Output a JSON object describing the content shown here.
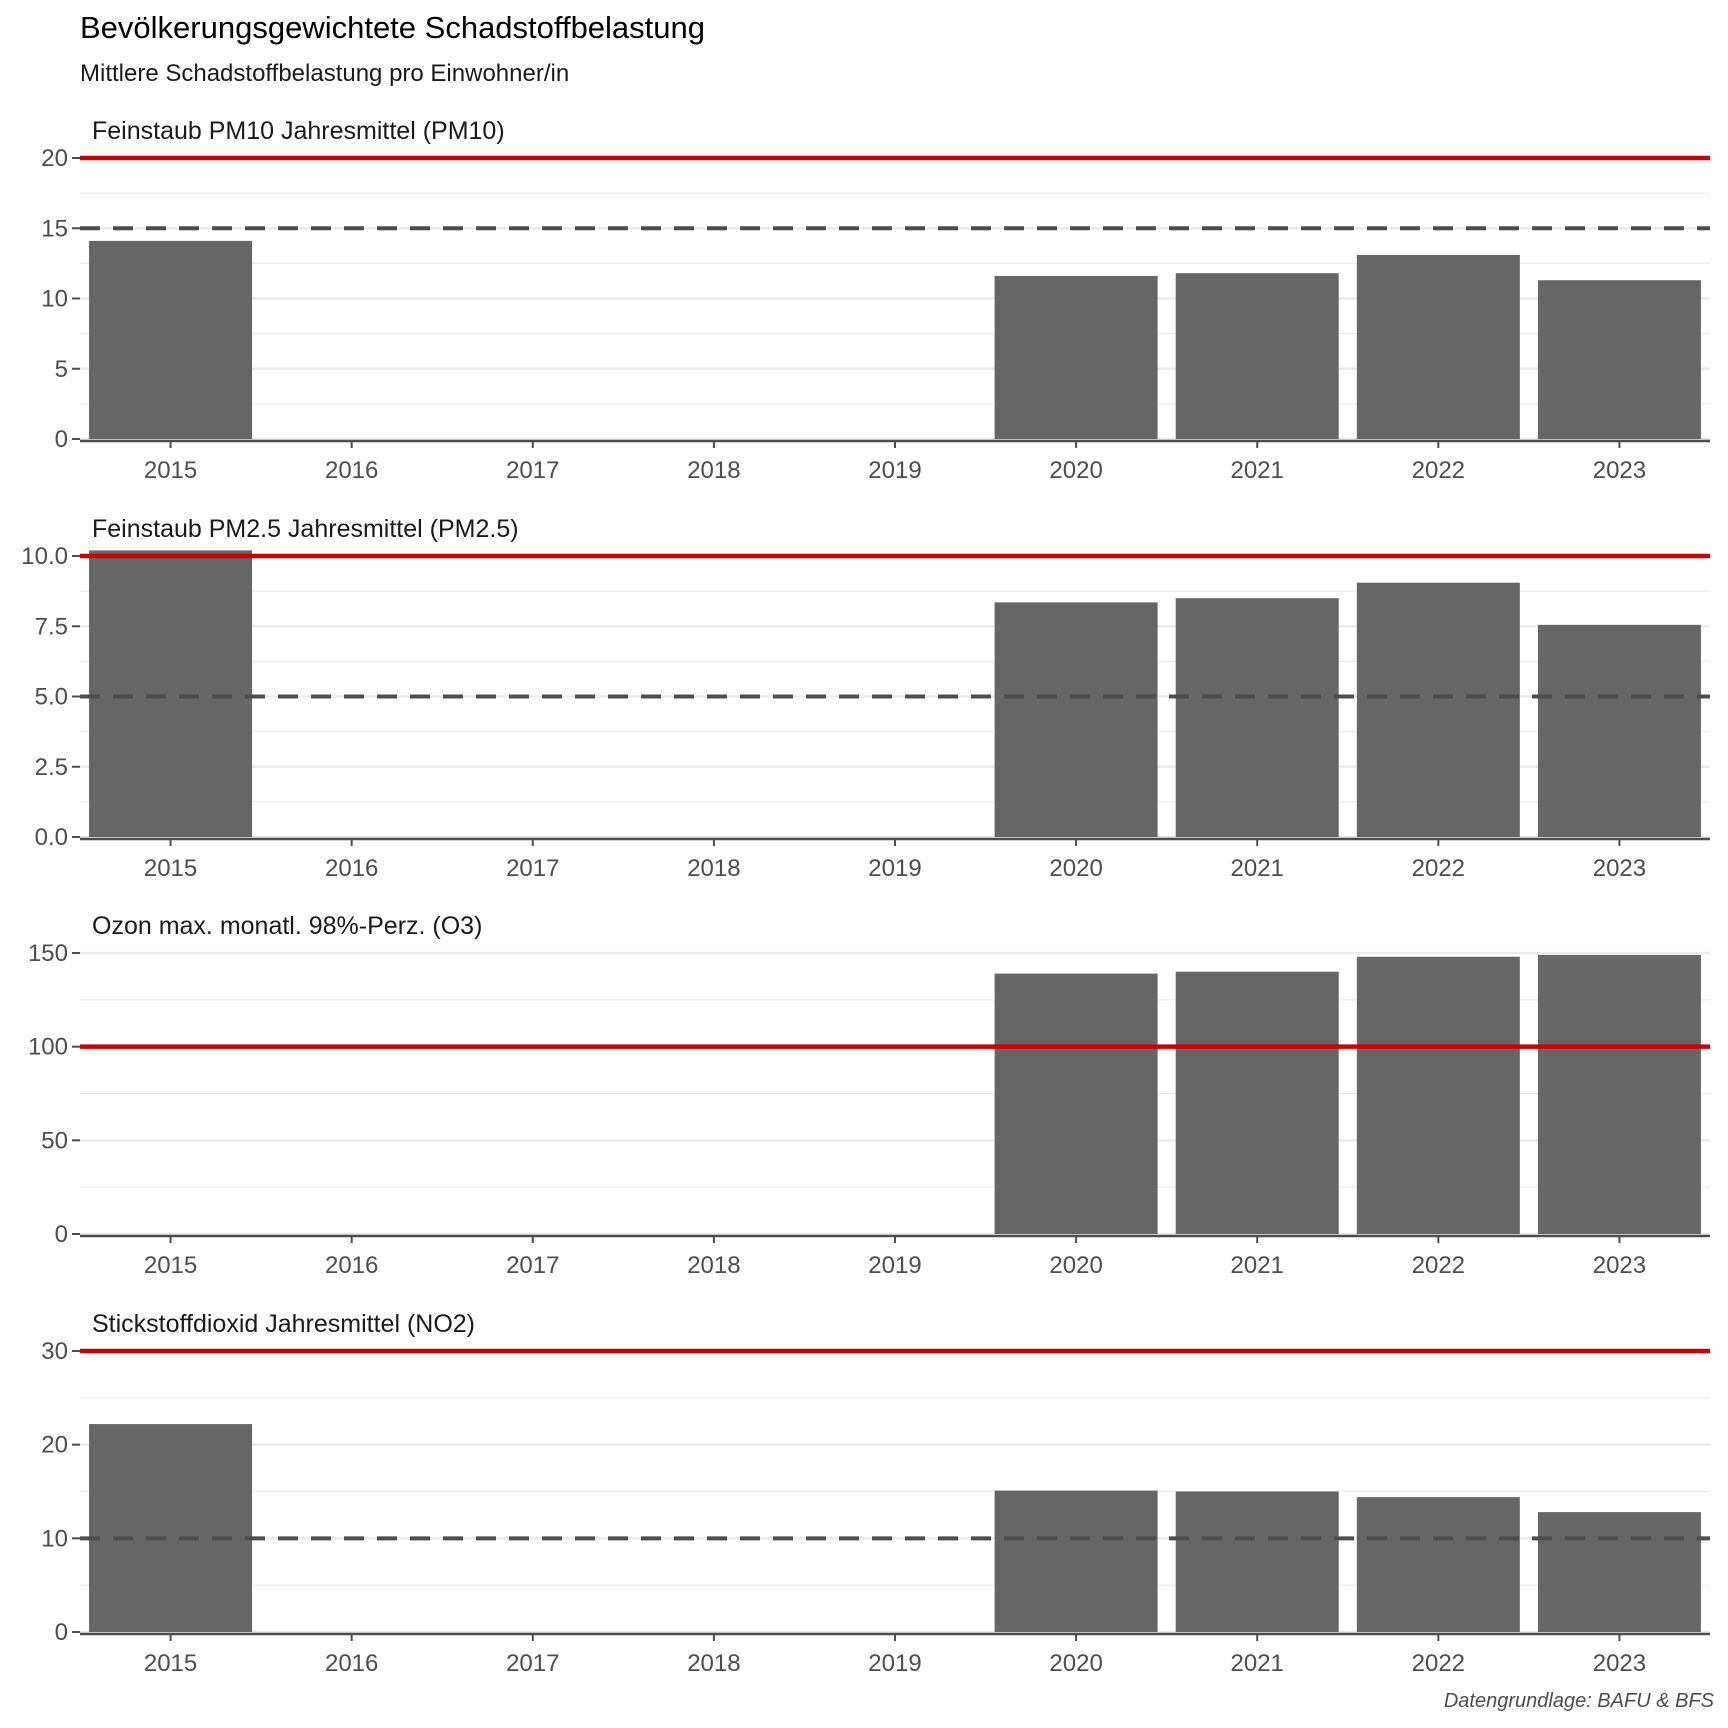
{
  "title": "Bevölkerungsgewichtete Schadstoffbelastung",
  "subtitle": "Mittlere Schadstoffbelastung pro Einwohner/in",
  "caption": "Datengrundlage: BAFU & BFS",
  "colors": {
    "bar": "#666666",
    "limit_line": "#cc0000",
    "guideline_line": "#4d4d4d",
    "grid": "#ebebeb",
    "axis": "#4d4d4d"
  },
  "chart_data": [
    {
      "type": "bar",
      "title": "Feinstaub PM10 Jahresmittel (PM10)",
      "categories": [
        "2015",
        "2016",
        "2017",
        "2018",
        "2019",
        "2020",
        "2021",
        "2022",
        "2023"
      ],
      "values": [
        14.1,
        null,
        null,
        null,
        null,
        11.6,
        11.8,
        13.1,
        11.3
      ],
      "ylim": [
        0,
        20
      ],
      "yticks": [
        0,
        5,
        10,
        15,
        20
      ],
      "ytick_labels": [
        "0",
        "5",
        "10",
        "15",
        "20"
      ],
      "reference_lines": [
        {
          "value": 20,
          "style": "solid",
          "color": "#cc0000"
        },
        {
          "value": 15,
          "style": "dashed",
          "color": "#4d4d4d"
        }
      ]
    },
    {
      "type": "bar",
      "title": "Feinstaub PM2.5 Jahresmittel (PM2.5)",
      "categories": [
        "2015",
        "2016",
        "2017",
        "2018",
        "2019",
        "2020",
        "2021",
        "2022",
        "2023"
      ],
      "values": [
        10.2,
        null,
        null,
        null,
        null,
        8.35,
        8.5,
        9.05,
        7.55
      ],
      "ylim": [
        0,
        10
      ],
      "yticks": [
        0,
        2.5,
        5,
        7.5,
        10
      ],
      "ytick_labels": [
        "0.0",
        "2.5",
        "5.0",
        "7.5",
        "10.0"
      ],
      "reference_lines": [
        {
          "value": 10,
          "style": "solid",
          "color": "#cc0000"
        },
        {
          "value": 5,
          "style": "dashed",
          "color": "#4d4d4d"
        }
      ]
    },
    {
      "type": "bar",
      "title": "Ozon max. monatl. 98%-Perz. (O3)",
      "categories": [
        "2015",
        "2016",
        "2017",
        "2018",
        "2019",
        "2020",
        "2021",
        "2022",
        "2023"
      ],
      "values": [
        null,
        null,
        null,
        null,
        null,
        139,
        140,
        148,
        149
      ],
      "ylim": [
        0,
        150
      ],
      "yticks": [
        0,
        50,
        100,
        150
      ],
      "ytick_labels": [
        "0",
        "50",
        "100",
        "150"
      ],
      "reference_lines": [
        {
          "value": 100,
          "style": "solid",
          "color": "#cc0000"
        }
      ]
    },
    {
      "type": "bar",
      "title": "Stickstoffdioxid Jahresmittel (NO2)",
      "categories": [
        "2015",
        "2016",
        "2017",
        "2018",
        "2019",
        "2020",
        "2021",
        "2022",
        "2023"
      ],
      "values": [
        22.2,
        null,
        null,
        null,
        null,
        15.1,
        15.0,
        14.4,
        12.8
      ],
      "ylim": [
        0,
        30
      ],
      "yticks": [
        0,
        10,
        20,
        30
      ],
      "ytick_labels": [
        "0",
        "10",
        "20",
        "30"
      ],
      "reference_lines": [
        {
          "value": 30,
          "style": "solid",
          "color": "#cc0000"
        },
        {
          "value": 10,
          "style": "dashed",
          "color": "#4d4d4d"
        }
      ]
    }
  ]
}
